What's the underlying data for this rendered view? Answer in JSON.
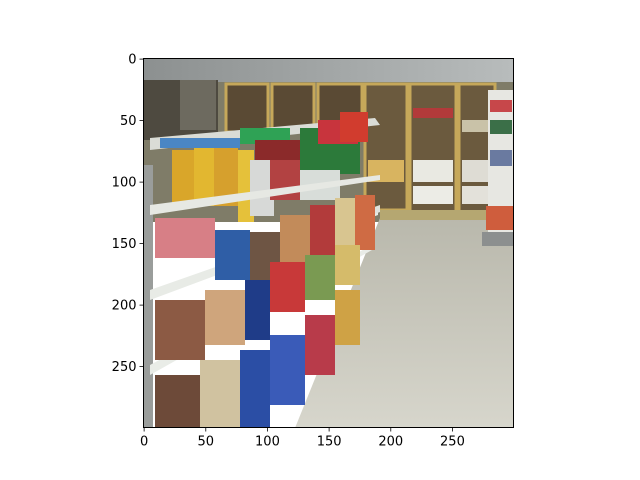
{
  "figure": {
    "image_subject": "store-aisle-photo",
    "x_ticks": [
      "0",
      "50",
      "100",
      "150",
      "200",
      "250"
    ],
    "y_ticks": [
      "0",
      "50",
      "100",
      "150",
      "200",
      "250"
    ],
    "x_tick_values": [
      0,
      50,
      100,
      150,
      200,
      250
    ],
    "y_tick_values": [
      0,
      50,
      100,
      150,
      200,
      250
    ],
    "xlim": [
      0,
      299
    ],
    "ylim": [
      299,
      0
    ]
  },
  "colors": {
    "ceiling": "#9fa3a3",
    "back_wall": "#8d8a74",
    "cooler_frame": "#c6a85a",
    "floor": "#c9c8bd",
    "shelf": "#dfe3dd",
    "shelf_dark": "#6b6f72"
  }
}
